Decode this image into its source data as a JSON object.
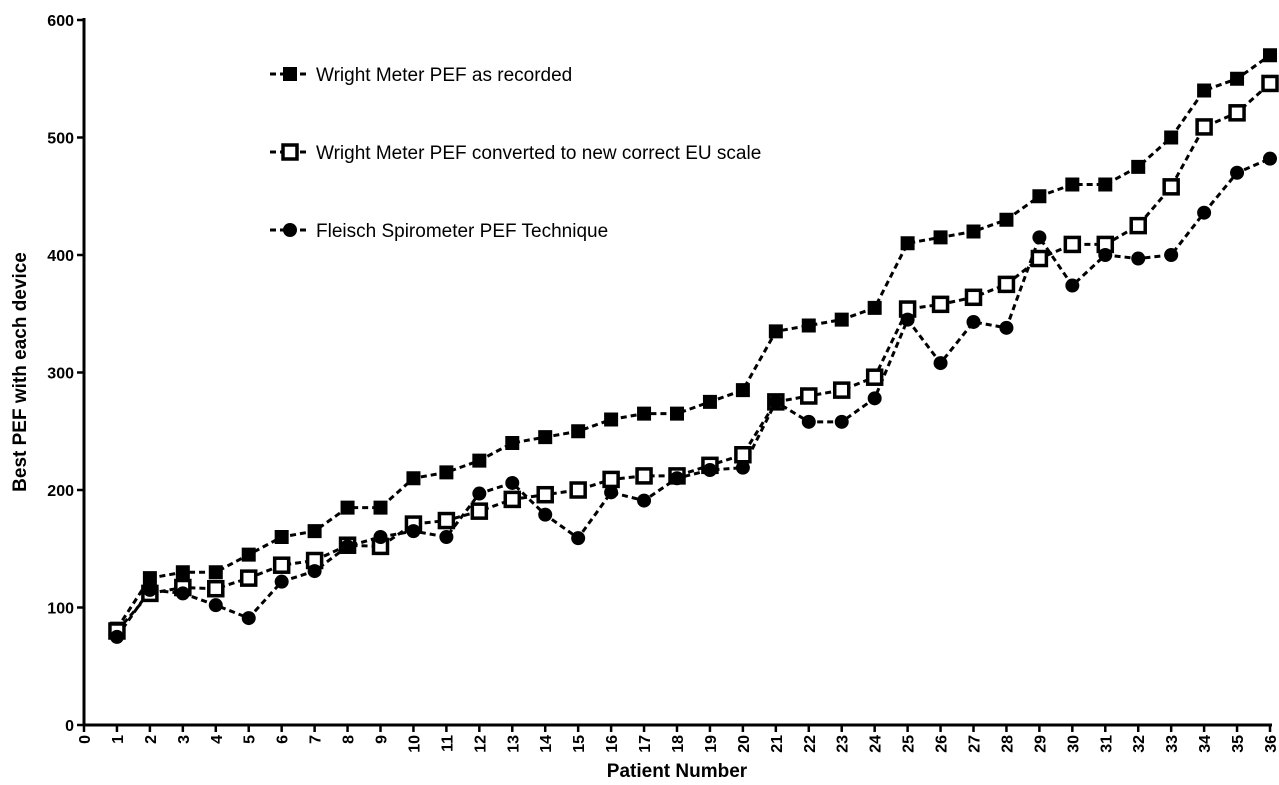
{
  "chart_data": {
    "type": "line",
    "xlabel": "Patient Number",
    "ylabel": "Best PEF with each device",
    "x": [
      1,
      2,
      3,
      4,
      5,
      6,
      7,
      8,
      9,
      10,
      11,
      12,
      13,
      14,
      15,
      16,
      17,
      18,
      19,
      20,
      21,
      22,
      23,
      24,
      25,
      26,
      27,
      28,
      29,
      30,
      31,
      32,
      33,
      34,
      35,
      36
    ],
    "series": [
      {
        "name": "Wright Meter PEF as recorded",
        "color": "#000000",
        "marker": "filled-square",
        "values": [
          82,
          125,
          130,
          130,
          145,
          160,
          165,
          185,
          185,
          210,
          215,
          225,
          240,
          245,
          250,
          260,
          265,
          265,
          275,
          285,
          335,
          340,
          345,
          355,
          410,
          415,
          420,
          430,
          450,
          460,
          460,
          475,
          500,
          540,
          550,
          570
        ]
      },
      {
        "name": "Wright Meter PEF converted to new correct EU scale",
        "color": "#000000",
        "marker": "open-square",
        "values": [
          80,
          112,
          117,
          116,
          125,
          136,
          140,
          153,
          152,
          171,
          174,
          182,
          192,
          196,
          200,
          209,
          212,
          212,
          221,
          230,
          275,
          280,
          285,
          296,
          354,
          358,
          364,
          375,
          397,
          409,
          409,
          425,
          458,
          509,
          521,
          546
        ]
      },
      {
        "name": "Fleisch Spirometer PEF Technique",
        "color": "#000000",
        "marker": "circle",
        "values": [
          75,
          115,
          112,
          102,
          91,
          122,
          131,
          152,
          160,
          165,
          160,
          197,
          206,
          179,
          159,
          198,
          191,
          210,
          217,
          219,
          275,
          258,
          258,
          278,
          345,
          308,
          343,
          338,
          415,
          374,
          400,
          397,
          400,
          436,
          470,
          482
        ]
      }
    ],
    "xlim": [
      0,
      36
    ],
    "xticks": [
      0,
      1,
      2,
      3,
      4,
      5,
      6,
      7,
      8,
      9,
      10,
      11,
      12,
      13,
      14,
      15,
      16,
      17,
      18,
      19,
      20,
      21,
      22,
      23,
      24,
      25,
      26,
      27,
      28,
      29,
      30,
      31,
      32,
      33,
      34,
      35,
      36
    ],
    "ylim": [
      0,
      600
    ],
    "yticks": [
      0,
      100,
      200,
      300,
      400,
      500,
      600
    ],
    "grid": false,
    "legend": "upper-left"
  }
}
